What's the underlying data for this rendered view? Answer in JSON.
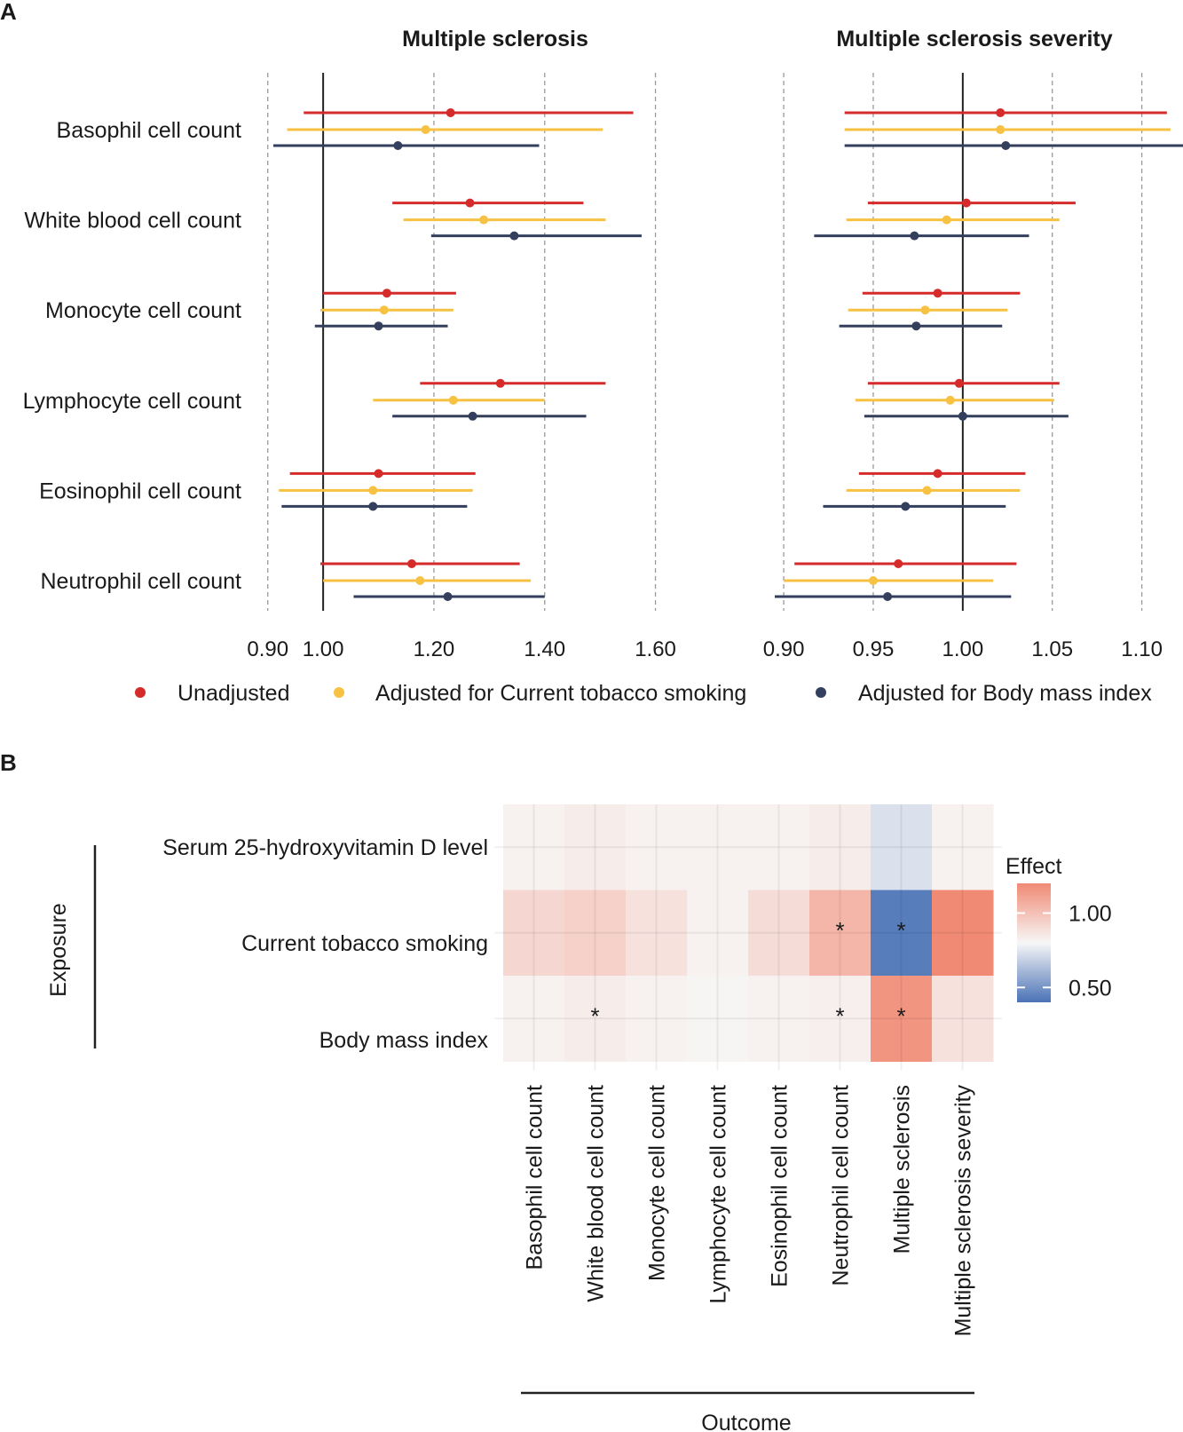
{
  "panel_a_label": "A",
  "panel_b_label": "B",
  "chart_data": [
    {
      "type": "forest",
      "title": "Multiple sclerosis",
      "xlim": [
        0.87,
        1.66
      ],
      "xticks": [
        0.9,
        1.0,
        1.2,
        1.4,
        1.6
      ],
      "xtick_labels": [
        "0.90",
        "1.00",
        "1.20",
        "1.40",
        "1.60"
      ],
      "reference": 1.0,
      "categories": [
        "Basophil cell count",
        "White blood cell count",
        "Monocyte cell count",
        "Lymphocyte cell count",
        "Eosinophil cell count",
        "Neutrophil cell count"
      ],
      "series": [
        {
          "name": "Unadjusted",
          "color": "#d62b2b",
          "estimates": [
            1.23,
            1.265,
            1.115,
            1.32,
            1.1,
            1.16
          ],
          "lower": [
            0.965,
            1.125,
            1.0,
            1.175,
            0.94,
            0.995
          ],
          "upper": [
            1.56,
            1.47,
            1.24,
            1.51,
            1.275,
            1.355
          ]
        },
        {
          "name": "Adjusted for Current tobacco smoking",
          "color": "#f7c143",
          "estimates": [
            1.185,
            1.29,
            1.11,
            1.235,
            1.09,
            1.175
          ],
          "lower": [
            0.935,
            1.145,
            0.995,
            1.09,
            0.92,
            1.0
          ],
          "upper": [
            1.505,
            1.51,
            1.235,
            1.4,
            1.27,
            1.375
          ]
        },
        {
          "name": "Adjusted for Body mass index",
          "color": "#333f5c",
          "estimates": [
            1.135,
            1.345,
            1.1,
            1.27,
            1.09,
            1.225
          ],
          "lower": [
            0.91,
            1.195,
            0.985,
            1.125,
            0.925,
            1.055
          ],
          "upper": [
            1.39,
            1.575,
            1.225,
            1.475,
            1.26,
            1.4
          ]
        }
      ]
    },
    {
      "type": "forest",
      "title": "Multiple sclerosis severity",
      "xlim": [
        0.895,
        1.123
      ],
      "xticks": [
        0.9,
        0.95,
        1.0,
        1.05,
        1.1
      ],
      "xtick_labels": [
        "0.90",
        "0.95",
        "1.00",
        "1.05",
        "1.10"
      ],
      "reference": 1.0,
      "categories": [
        "Basophil cell count",
        "White blood cell count",
        "Monocyte cell count",
        "Lymphocyte cell count",
        "Eosinophil cell count",
        "Neutrophil cell count"
      ],
      "series": [
        {
          "name": "Unadjusted",
          "color": "#d62b2b",
          "estimates": [
            1.021,
            1.002,
            0.986,
            0.998,
            0.986,
            0.964
          ],
          "lower": [
            0.934,
            0.947,
            0.944,
            0.947,
            0.942,
            0.906
          ],
          "upper": [
            1.114,
            1.063,
            1.032,
            1.054,
            1.035,
            1.03
          ]
        },
        {
          "name": "Adjusted for Current tobacco smoking",
          "color": "#f7c143",
          "estimates": [
            1.021,
            0.991,
            0.979,
            0.993,
            0.98,
            0.95
          ],
          "lower": [
            0.934,
            0.935,
            0.936,
            0.94,
            0.935,
            0.9
          ],
          "upper": [
            1.116,
            1.054,
            1.025,
            1.051,
            1.032,
            1.017
          ]
        },
        {
          "name": "Adjusted for Body mass index",
          "color": "#333f5c",
          "estimates": [
            1.024,
            0.973,
            0.974,
            1.0,
            0.968,
            0.958
          ],
          "lower": [
            0.934,
            0.917,
            0.931,
            0.945,
            0.922,
            0.895
          ],
          "upper": [
            1.123,
            1.037,
            1.022,
            1.059,
            1.024,
            1.027
          ]
        }
      ]
    },
    {
      "type": "heatmap",
      "legend_title": "Effect",
      "legend_ticks": [
        1.0,
        0.5
      ],
      "legend_tick_labels": [
        "1.00",
        "0.50"
      ],
      "legend_range": [
        0.4,
        1.2
      ],
      "ylabel": "Exposure",
      "xlabel": "Outcome",
      "rows": [
        "Serum 25-hydroxyvitamin D level",
        "Current tobacco smoking",
        "Body mass index"
      ],
      "columns": [
        "Basophil cell count",
        "White blood cell count",
        "Monocyte cell count",
        "Lymphocyte cell count",
        "Eosinophil cell count",
        "Neutrophil cell count",
        "Multiple sclerosis",
        "Multiple sclerosis severity"
      ],
      "values": [
        [
          1.01,
          1.02,
          1.01,
          1.01,
          1.01,
          1.02,
          0.9,
          1.01
        ],
        [
          1.06,
          1.07,
          1.04,
          1.01,
          1.05,
          1.12,
          0.45,
          1.25
        ],
        [
          1.01,
          1.02,
          1.01,
          1.005,
          1.01,
          1.015,
          1.18,
          1.04
        ]
      ],
      "significance": [
        [
          0,
          0,
          0,
          0,
          0,
          0,
          0,
          0
        ],
        [
          0,
          0,
          0,
          0,
          0,
          1,
          1,
          0
        ],
        [
          0,
          1,
          0,
          0,
          0,
          1,
          1,
          0
        ]
      ],
      "significance_marker": "*"
    }
  ],
  "colors": {
    "axis": "#222222",
    "grid": "#9a9a9a",
    "low": "#4a72b6",
    "mid": "#f7f7f7",
    "high": "#f08a74"
  }
}
